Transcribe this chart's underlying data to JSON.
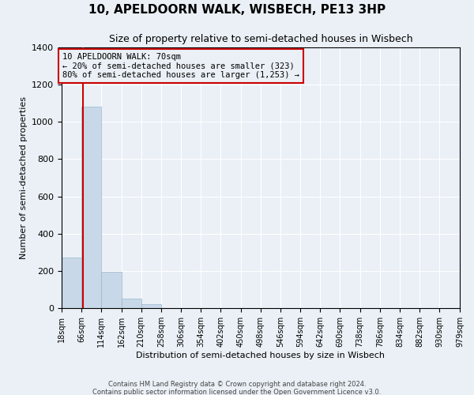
{
  "title": "10, APELDOORN WALK, WISBECH, PE13 3HP",
  "subtitle": "Size of property relative to semi-detached houses in Wisbech",
  "xlabel": "Distribution of semi-detached houses by size in Wisbech",
  "ylabel": "Number of semi-detached properties",
  "footer_lines": [
    "Contains HM Land Registry data © Crown copyright and database right 2024.",
    "Contains public sector information licensed under the Open Government Licence v3.0."
  ],
  "bin_edges": [
    18,
    66,
    114,
    162,
    210,
    258,
    306,
    354,
    402,
    450,
    498,
    546,
    594,
    642,
    690,
    738,
    786,
    834,
    882,
    930,
    979
  ],
  "bin_labels": [
    "18sqm",
    "66sqm",
    "114sqm",
    "162sqm",
    "210sqm",
    "258sqm",
    "306sqm",
    "354sqm",
    "402sqm",
    "450sqm",
    "498sqm",
    "546sqm",
    "594sqm",
    "642sqm",
    "690sqm",
    "738sqm",
    "786sqm",
    "834sqm",
    "882sqm",
    "930sqm",
    "979sqm"
  ],
  "bar_heights": [
    270,
    1080,
    195,
    50,
    20,
    0,
    0,
    0,
    0,
    0,
    0,
    0,
    0,
    0,
    0,
    0,
    0,
    0,
    0,
    0
  ],
  "bar_color": "#c8d8e8",
  "bar_edgecolor": "#9ab8cc",
  "property_size": 70,
  "property_line_color": "#cc0000",
  "annotation_text_line1": "10 APELDOORN WALK: 70sqm",
  "annotation_text_line2": "← 20% of semi-detached houses are smaller (323)",
  "annotation_text_line3": "80% of semi-detached houses are larger (1,253) →",
  "annotation_box_color": "#cc0000",
  "ylim": [
    0,
    1400
  ],
  "background_color": "#eaf0f6",
  "plot_background": "#eaf0f6",
  "white_grid": true
}
